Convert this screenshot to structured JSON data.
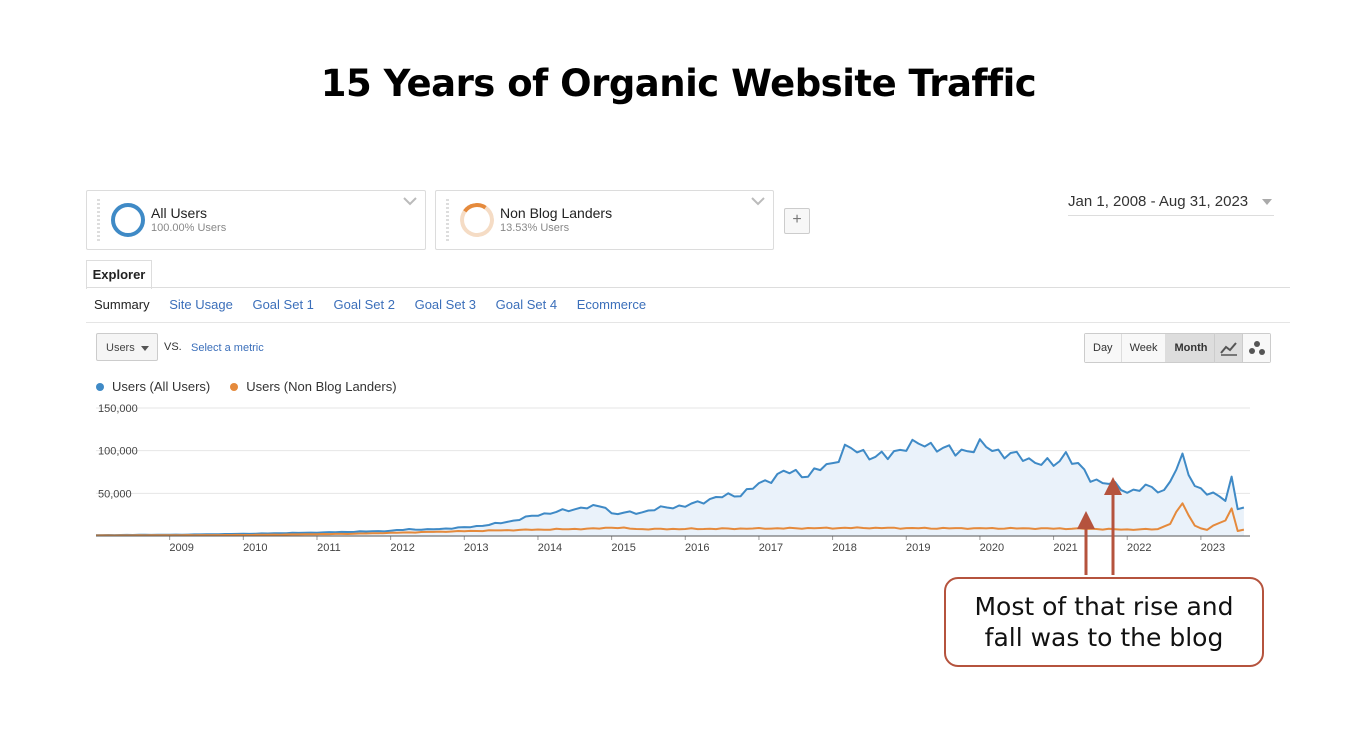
{
  "page": {
    "title": "15 Years of Organic Website Traffic"
  },
  "segments": [
    {
      "name": "All Users",
      "sub": "100.00% Users",
      "color": "#3f8ac6"
    },
    {
      "name": "Non Blog Landers",
      "sub": "13.53% Users",
      "color": "#e58a3c"
    }
  ],
  "add_segment_label": "+",
  "date_range": "Jan 1, 2008 - Aug 31, 2023",
  "tabs": {
    "explorer": "Explorer"
  },
  "subnav": [
    "Summary",
    "Site Usage",
    "Goal Set 1",
    "Goal Set 2",
    "Goal Set 3",
    "Goal Set 4",
    "Ecommerce"
  ],
  "metric": {
    "selected": "Users",
    "vs": "VS.",
    "select_metric": "Select a metric"
  },
  "granularity": [
    "Day",
    "Week",
    "Month"
  ],
  "granularity_active": "Month",
  "legend": [
    {
      "label": "Users (All Users)",
      "color": "#3f8ac6"
    },
    {
      "label": "Users (Non Blog Landers)",
      "color": "#e58a3c"
    }
  ],
  "callout": {
    "text": "Most of that rise and fall was to the blog",
    "color": "#b5533d"
  },
  "chart_data": {
    "type": "line",
    "ylim": [
      0,
      150000
    ],
    "yticks": [
      "150,000",
      "100,000",
      "50,000"
    ],
    "ytick_values": [
      150000,
      100000,
      50000
    ],
    "xticks": [
      "2009",
      "2010",
      "2011",
      "2012",
      "2013",
      "2014",
      "2015",
      "2016",
      "2017",
      "2018",
      "2019",
      "2020",
      "2021",
      "2022",
      "2023"
    ],
    "x_start": "2008-01",
    "x_end": "2023-08",
    "grid": true,
    "legend_position": "top-left",
    "series": [
      {
        "name": "Users (All Users)",
        "color": "#3f8ac6",
        "area": true,
        "anchors": [
          [
            "2008-01",
            1000
          ],
          [
            "2009-01",
            1500
          ],
          [
            "2010-01",
            2500
          ],
          [
            "2011-01",
            4000
          ],
          [
            "2011-07",
            5000
          ],
          [
            "2012-01",
            6000
          ],
          [
            "2012-04",
            8000
          ],
          [
            "2012-07",
            7500
          ],
          [
            "2013-01",
            10000
          ],
          [
            "2013-05",
            13000
          ],
          [
            "2013-09",
            18000
          ],
          [
            "2014-01",
            25000
          ],
          [
            "2014-04",
            28000
          ],
          [
            "2014-08",
            33000
          ],
          [
            "2014-12",
            35000
          ],
          [
            "2015-01",
            26000
          ],
          [
            "2015-06",
            28000
          ],
          [
            "2015-10",
            34000
          ],
          [
            "2016-01",
            35000
          ],
          [
            "2016-06",
            45000
          ],
          [
            "2016-10",
            49000
          ],
          [
            "2017-01",
            60000
          ],
          [
            "2017-05",
            75000
          ],
          [
            "2017-09",
            72000
          ],
          [
            "2018-01",
            85000
          ],
          [
            "2018-03",
            103000
          ],
          [
            "2018-06",
            97000
          ],
          [
            "2018-10",
            92000
          ],
          [
            "2019-01",
            107000
          ],
          [
            "2019-06",
            106000
          ],
          [
            "2019-09",
            97000
          ],
          [
            "2020-01",
            106000
          ],
          [
            "2020-06",
            95000
          ],
          [
            "2020-10",
            88000
          ],
          [
            "2021-01",
            83000
          ],
          [
            "2021-03",
            97000
          ],
          [
            "2021-07",
            67000
          ],
          [
            "2021-10",
            62000
          ],
          [
            "2022-01",
            52000
          ],
          [
            "2022-04",
            57000
          ],
          [
            "2022-07",
            53000
          ],
          [
            "2022-10",
            90000
          ],
          [
            "2022-12",
            60000
          ],
          [
            "2023-02",
            50000
          ],
          [
            "2023-05",
            44000
          ],
          [
            "2023-06",
            68000
          ],
          [
            "2023-07",
            32000
          ],
          [
            "2023-08",
            33000
          ]
        ]
      },
      {
        "name": "Users (Non Blog Landers)",
        "color": "#e58a3c",
        "area": false,
        "anchors": [
          [
            "2008-01",
            600
          ],
          [
            "2010-01",
            1200
          ],
          [
            "2011-06",
            2500
          ],
          [
            "2012-06",
            4500
          ],
          [
            "2013-06",
            6500
          ],
          [
            "2014-01",
            7500
          ],
          [
            "2014-10",
            8500
          ],
          [
            "2015-01",
            10000
          ],
          [
            "2015-06",
            8000
          ],
          [
            "2016-06",
            8500
          ],
          [
            "2017-06",
            9000
          ],
          [
            "2018-06",
            9500
          ],
          [
            "2019-06",
            9000
          ],
          [
            "2020-06",
            9000
          ],
          [
            "2021-06",
            8500
          ],
          [
            "2022-01",
            7500
          ],
          [
            "2022-06",
            8000
          ],
          [
            "2022-08",
            15000
          ],
          [
            "2022-10",
            38000
          ],
          [
            "2022-12",
            12000
          ],
          [
            "2023-02",
            7000
          ],
          [
            "2023-04",
            16000
          ],
          [
            "2023-05",
            18000
          ],
          [
            "2023-06",
            33000
          ],
          [
            "2023-07",
            6000
          ],
          [
            "2023-08",
            7000
          ]
        ]
      }
    ]
  }
}
